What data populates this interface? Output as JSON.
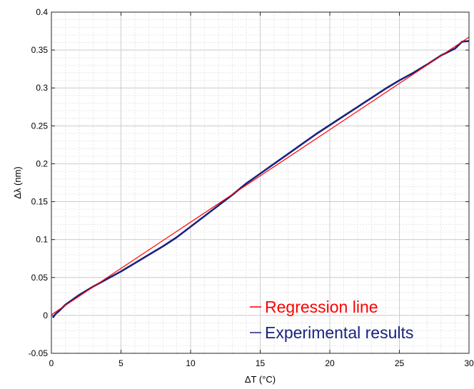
{
  "chart_data": {
    "type": "line",
    "xlabel": "ΔT (°C)",
    "ylabel": "Δλ  (nm)",
    "xlim": [
      0,
      30
    ],
    "ylim": [
      -0.05,
      0.4
    ],
    "x_ticks": [
      "0",
      "5",
      "10",
      "15",
      "20",
      "25",
      "30"
    ],
    "y_ticks": [
      "-0.05",
      "0",
      "0.05",
      "0.1",
      "0.15",
      "0.2",
      "0.25",
      "0.3",
      "0.35",
      "0.4"
    ],
    "x_tick_values": [
      0,
      5,
      10,
      15,
      20,
      25,
      30
    ],
    "y_tick_values": [
      -0.05,
      0,
      0.05,
      0.1,
      0.15,
      0.2,
      0.25,
      0.3,
      0.35,
      0.4
    ],
    "grid": true,
    "legend_position": "bottom-right",
    "series": [
      {
        "name": "Regression line",
        "color": "#ff0000",
        "x": [
          0,
          30
        ],
        "y": [
          0.001,
          0.367
        ]
      },
      {
        "name": "Experimental results",
        "color": "#1a237e",
        "x": [
          0.1,
          0.3,
          0.5,
          1,
          2,
          3,
          4,
          5,
          6,
          7,
          8,
          9,
          10,
          11,
          12,
          13,
          14,
          15,
          16,
          17,
          18,
          19,
          20,
          21,
          22,
          23,
          24,
          25,
          26,
          27,
          28,
          29,
          29.5,
          30
        ],
        "y": [
          -0.003,
          0.002,
          0.005,
          0.014,
          0.027,
          0.038,
          0.048,
          0.058,
          0.069,
          0.08,
          0.091,
          0.103,
          0.117,
          0.131,
          0.145,
          0.159,
          0.174,
          0.187,
          0.2,
          0.213,
          0.226,
          0.239,
          0.251,
          0.263,
          0.275,
          0.287,
          0.299,
          0.31,
          0.32,
          0.331,
          0.343,
          0.352,
          0.361,
          0.362
        ]
      }
    ]
  }
}
